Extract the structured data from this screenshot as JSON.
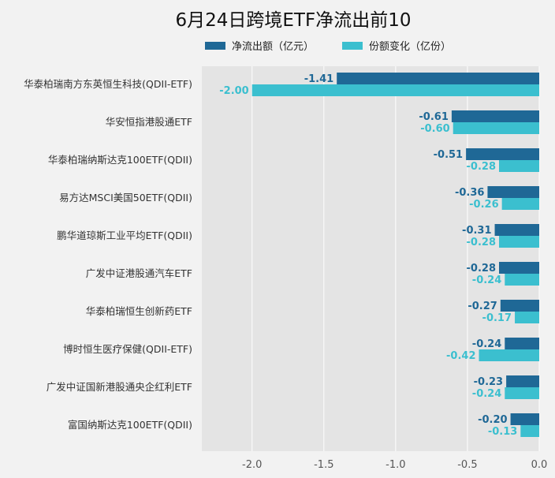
{
  "chart_data": {
    "type": "bar",
    "orientation": "horizontal",
    "title": "6月24日跨境ETF净流出前10",
    "categories": [
      "华泰柏瑞南方东英恒生科技(QDII-ETF)",
      "华安恒指港股通ETF",
      "华泰柏瑞纳斯达克100ETF(QDII)",
      "易方达MSCI美国50ETF(QDII)",
      "鹏华道琼斯工业平均ETF(QDII)",
      "广发中证港股通汽车ETF",
      "华泰柏瑞恒生创新药ETF",
      "博时恒生医疗保健(QDII-ETF)",
      "广发中证国新港股通央企红利ETF",
      "富国纳斯达克100ETF(QDII)"
    ],
    "series": [
      {
        "name": "净流出额（亿元）",
        "color": "#1f6896",
        "values": [
          -1.41,
          -0.61,
          -0.51,
          -0.36,
          -0.31,
          -0.28,
          -0.27,
          -0.24,
          -0.23,
          -0.2
        ]
      },
      {
        "name": "份额变化（亿份）",
        "color": "#3bbfcf",
        "values": [
          -2.0,
          -0.6,
          -0.28,
          -0.26,
          -0.28,
          -0.24,
          -0.17,
          -0.42,
          -0.24,
          -0.13
        ]
      }
    ],
    "xlim": [
      -2.35,
      0
    ],
    "xticks": [
      -2.0,
      -1.5,
      -1.0,
      -0.5,
      0.0
    ],
    "xtick_labels": [
      "-2.0",
      "-1.5",
      "-1.0",
      "-0.5",
      "0.0"
    ],
    "grid": true,
    "legend_position": "top",
    "background_color": "#e4e4e4"
  }
}
